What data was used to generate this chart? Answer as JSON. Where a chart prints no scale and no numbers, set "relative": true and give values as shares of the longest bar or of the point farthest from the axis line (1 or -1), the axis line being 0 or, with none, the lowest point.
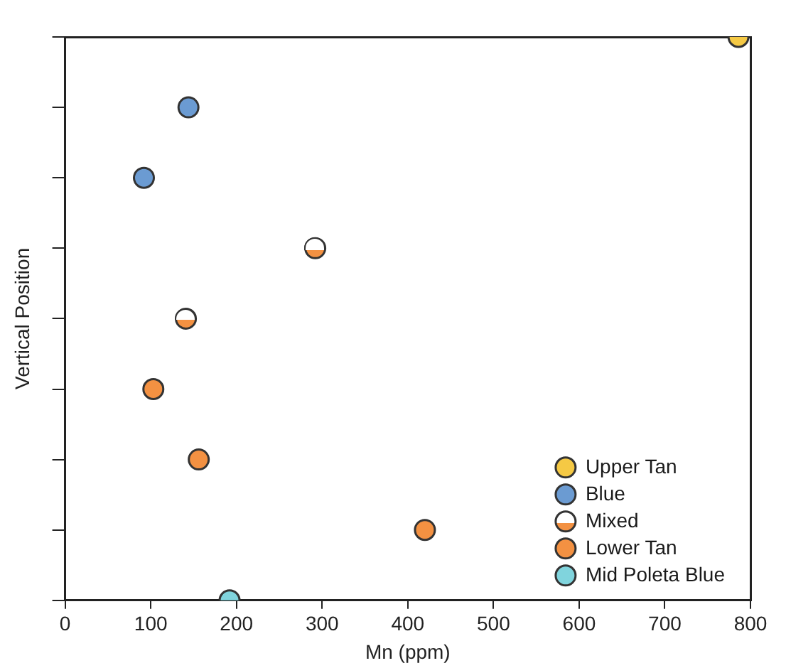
{
  "chart_data": {
    "type": "scatter",
    "xlabel": "Mn (ppm)",
    "ylabel": "Vertical Position",
    "relative": true,
    "xlim": [
      0,
      800
    ],
    "xticks": [
      0,
      100,
      200,
      300,
      400,
      500,
      600,
      700,
      800
    ],
    "legend": "bottom right",
    "marker": "circle",
    "grid": false,
    "series": [
      {
        "name": "Upper Tan",
        "color": "#f5c944",
        "x": [
          786
        ],
        "values": [
          1
        ]
      },
      {
        "name": "Blue",
        "color": "#6b9bd2",
        "x": [
          144,
          92
        ],
        "values": [
          0.875,
          0.75
        ]
      },
      {
        "name": "Mixed",
        "color": "#f39142",
        "marker": "circle",
        "x": [
          292,
          141
        ],
        "values": [
          0.625,
          0.5
        ]
      },
      {
        "name": "Lower Tan",
        "color": "#f39142",
        "x": [
          103,
          156,
          420
        ],
        "values": [
          0.375,
          0.25,
          0.125
        ]
      },
      {
        "name": "Mid Poleta Blue",
        "color": "#80d4dd",
        "x": [
          192
        ],
        "values": [
          0
        ]
      }
    ]
  }
}
